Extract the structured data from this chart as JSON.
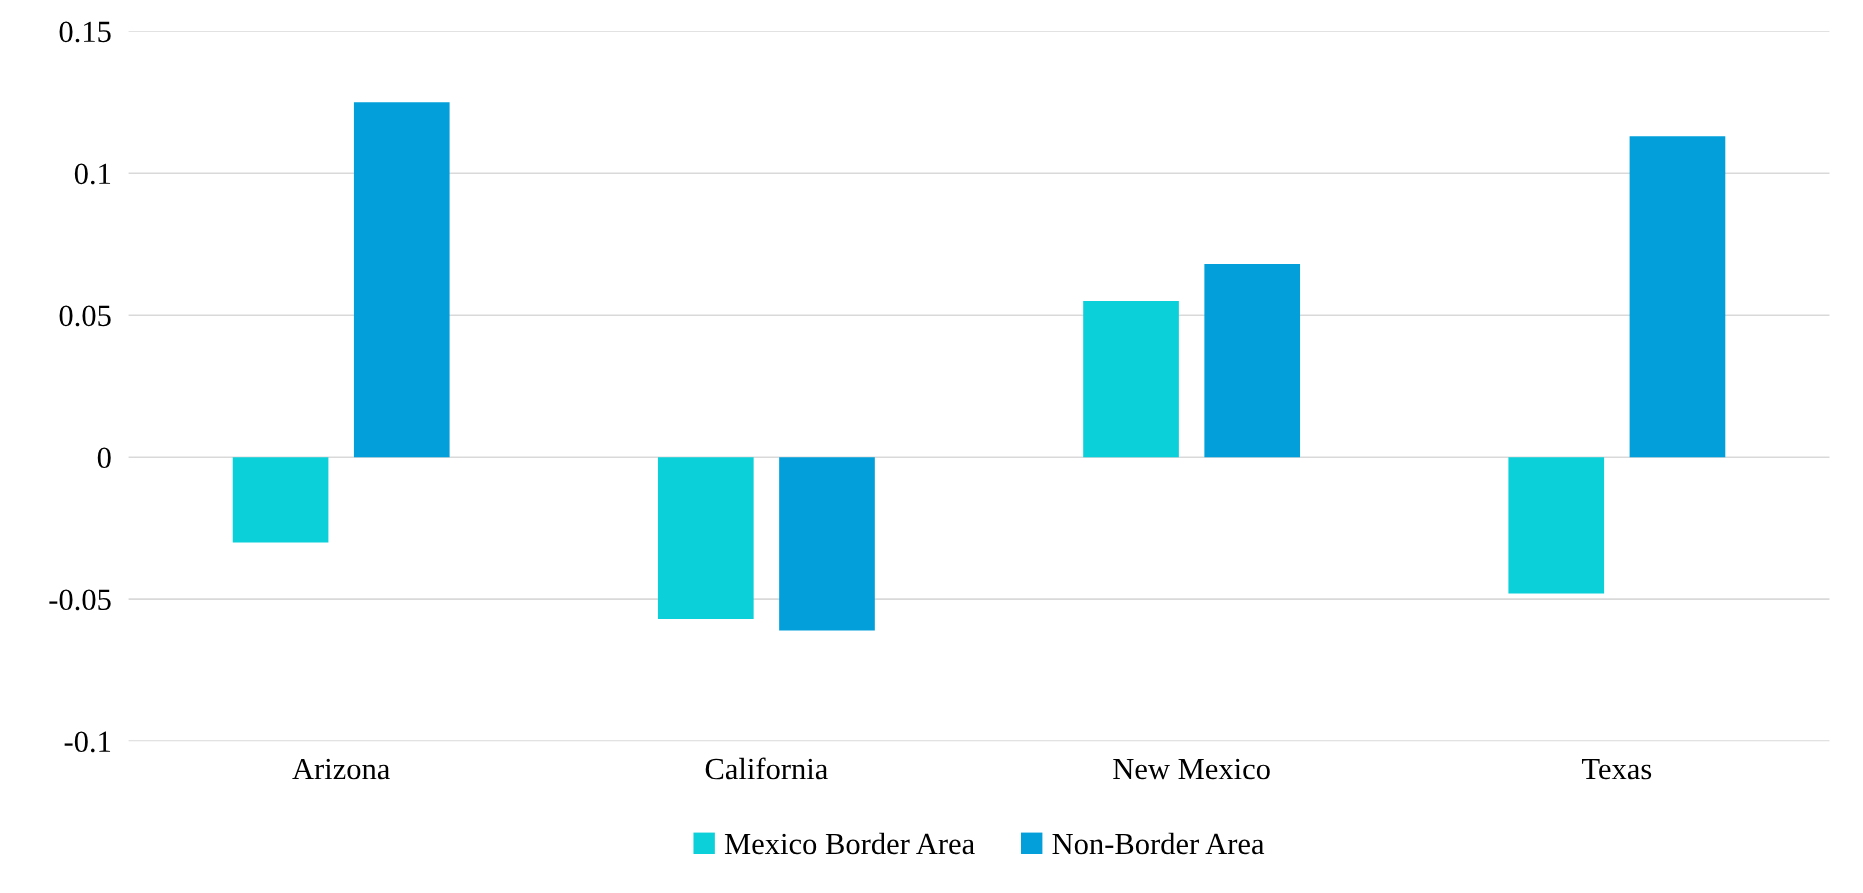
{
  "chart_data": {
    "type": "bar",
    "categories": [
      "Arizona",
      "California",
      "New Mexico",
      "Texas"
    ],
    "series": [
      {
        "name": "Mexico Border Area",
        "color": "#0bd0d9",
        "values": [
          -0.03,
          -0.057,
          0.055,
          -0.048
        ]
      },
      {
        "name": "Non-Border Area",
        "color": "#029fdb",
        "values": [
          0.125,
          -0.061,
          0.068,
          0.113
        ]
      }
    ],
    "ylim": [
      -0.1,
      0.15
    ],
    "yticks": [
      {
        "value": -0.1,
        "label": "-0.1"
      },
      {
        "value": -0.05,
        "label": "-0.05"
      },
      0,
      0.05,
      0.1,
      0.15
    ],
    "grid": "y",
    "legend": "bottom"
  }
}
